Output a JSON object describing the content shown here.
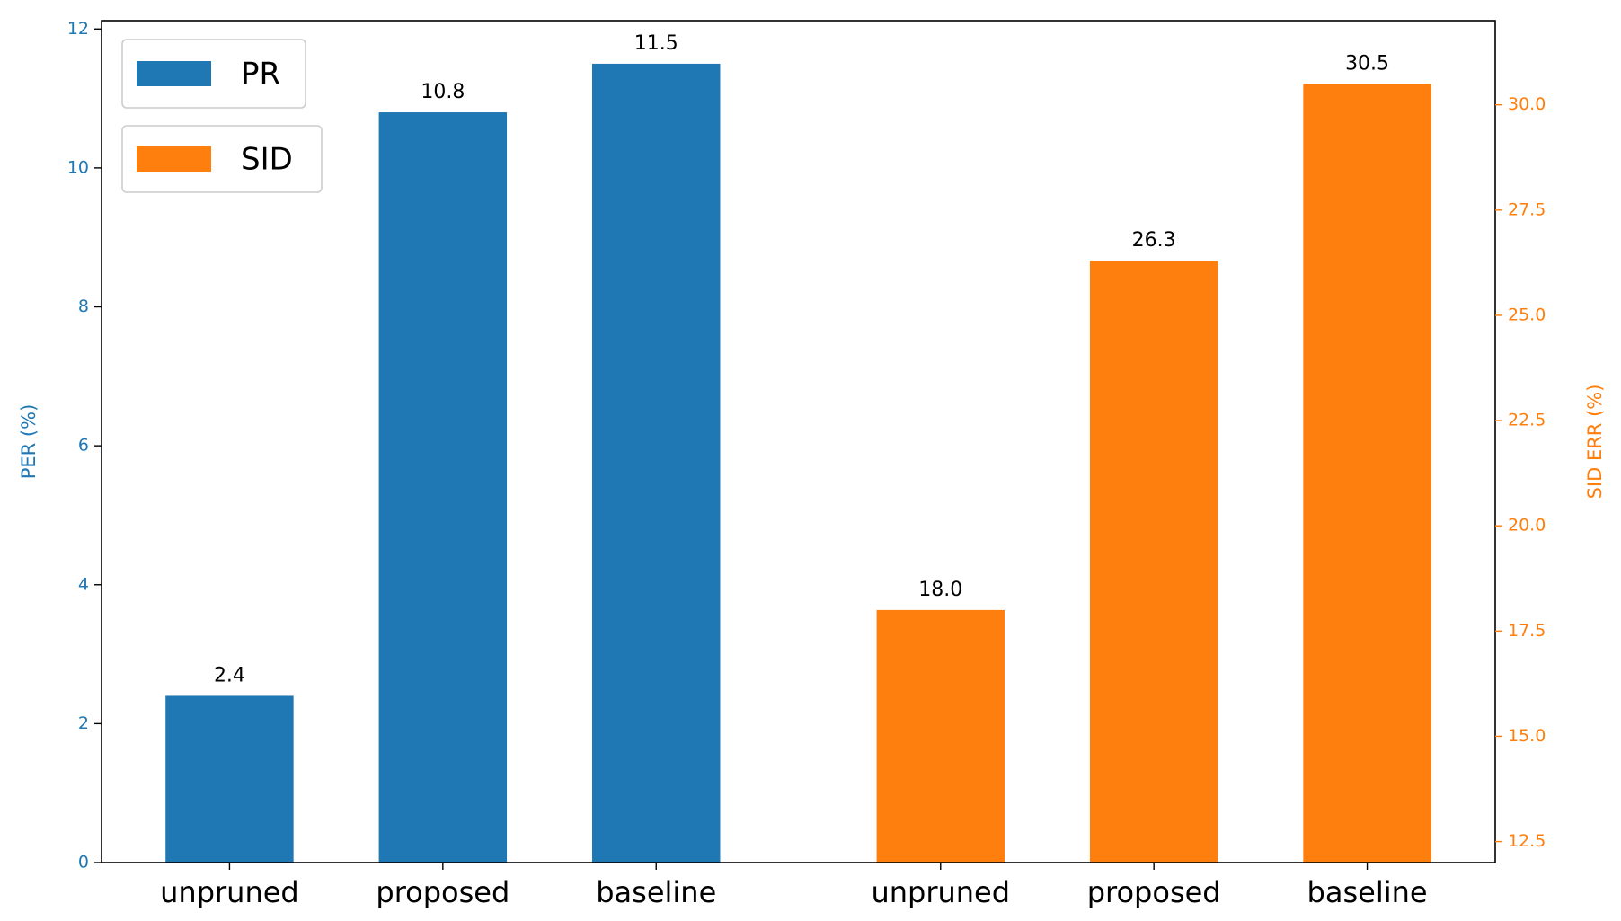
{
  "chart_data": {
    "type": "bar",
    "categories": [
      "unpruned",
      "proposed",
      "baseline",
      "unpruned",
      "proposed",
      "baseline"
    ],
    "series": [
      {
        "name": "PR",
        "color": "#1f77b4",
        "values": [
          2.4,
          10.8,
          11.5,
          null,
          null,
          null
        ]
      },
      {
        "name": "SID",
        "color": "#ff7f0e",
        "axis": "y2",
        "values": [
          null,
          null,
          null,
          18.0,
          26.3,
          30.5
        ],
        "value_labels": [
          null,
          null,
          null,
          "18.0",
          "26.3",
          "30.5"
        ]
      }
    ],
    "ylabel": "PER (%)",
    "y2label": "SID ERR (%)",
    "ylim": [
      0,
      12.12
    ],
    "yticks": [
      0,
      2,
      4,
      6,
      8,
      10,
      12
    ],
    "y2lim": [
      12,
      32
    ],
    "y2ticks": [
      12.5,
      {
        "value": 15,
        "label": "15.0"
      },
      17.5,
      {
        "value": 20,
        "label": "20.0"
      },
      22.5,
      {
        "value": 25,
        "label": "25.0"
      },
      27.5,
      {
        "value": 30,
        "label": "30.0"
      }
    ],
    "legend": "upper left"
  }
}
